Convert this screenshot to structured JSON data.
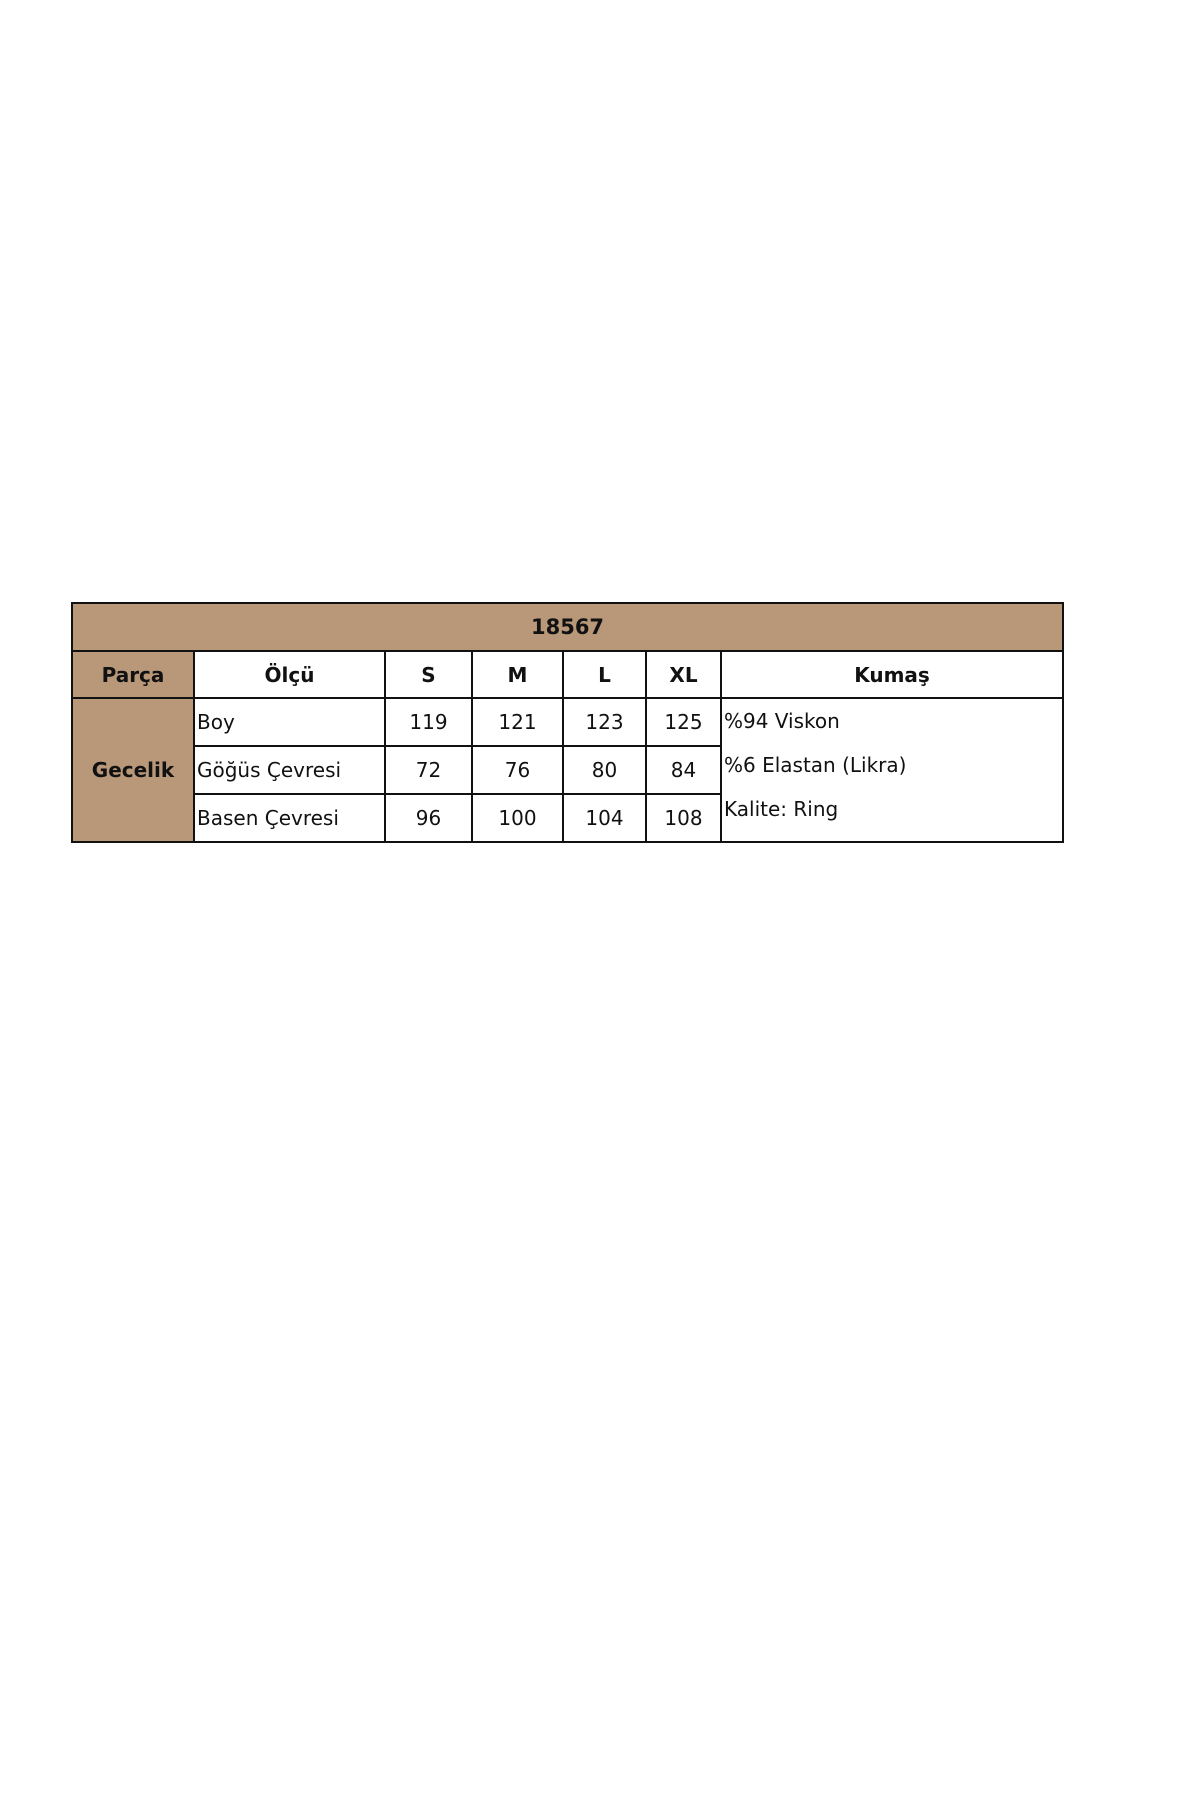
{
  "table": {
    "title": "18567",
    "headers": [
      "Parça",
      "Ölçü",
      "S",
      "M",
      "L",
      "XL",
      "Kumaş"
    ],
    "part": "Gecelik",
    "rows": [
      {
        "label": "Boy",
        "values": [
          "119",
          "121",
          "123",
          "125"
        ]
      },
      {
        "label": "Göğüs Çevresi",
        "values": [
          "72",
          "76",
          "80",
          "84"
        ]
      },
      {
        "label": "Basen Çevresi",
        "values": [
          "96",
          "100",
          "104",
          "108"
        ]
      }
    ],
    "fabric": [
      "%94 Viskon",
      "%6 Elastan (Likra)",
      "Kalite: Ring"
    ],
    "colors": {
      "header_fill": "#b9987a",
      "border": "#111111"
    }
  }
}
